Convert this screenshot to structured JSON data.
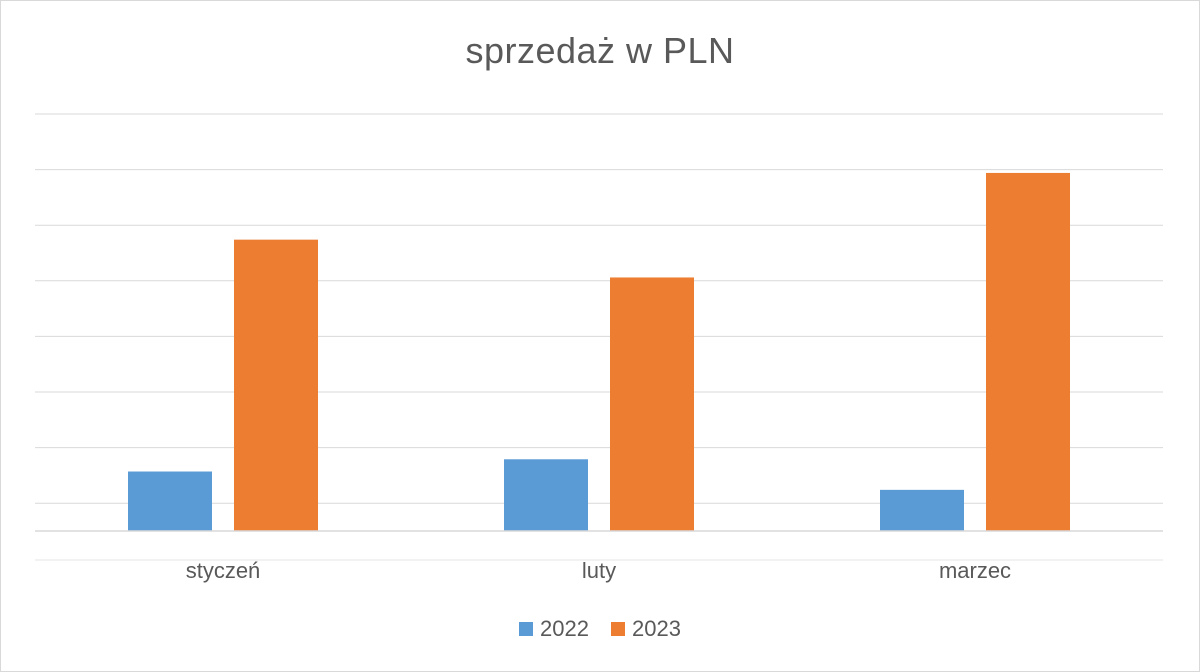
{
  "chart_data": {
    "type": "bar",
    "title": "sprzedaż w PLN",
    "categories": [
      "styczeń",
      "luty",
      "marzec"
    ],
    "series": [
      {
        "name": "2022",
        "color": "#5b9bd5",
        "values": [
          1.07,
          1.29,
          0.74
        ]
      },
      {
        "name": "2023",
        "color": "#ed7d31",
        "values": [
          5.24,
          4.56,
          6.44
        ]
      }
    ],
    "ylim": [
      0,
      7.5
    ],
    "grid": true,
    "legend": "bottom"
  }
}
